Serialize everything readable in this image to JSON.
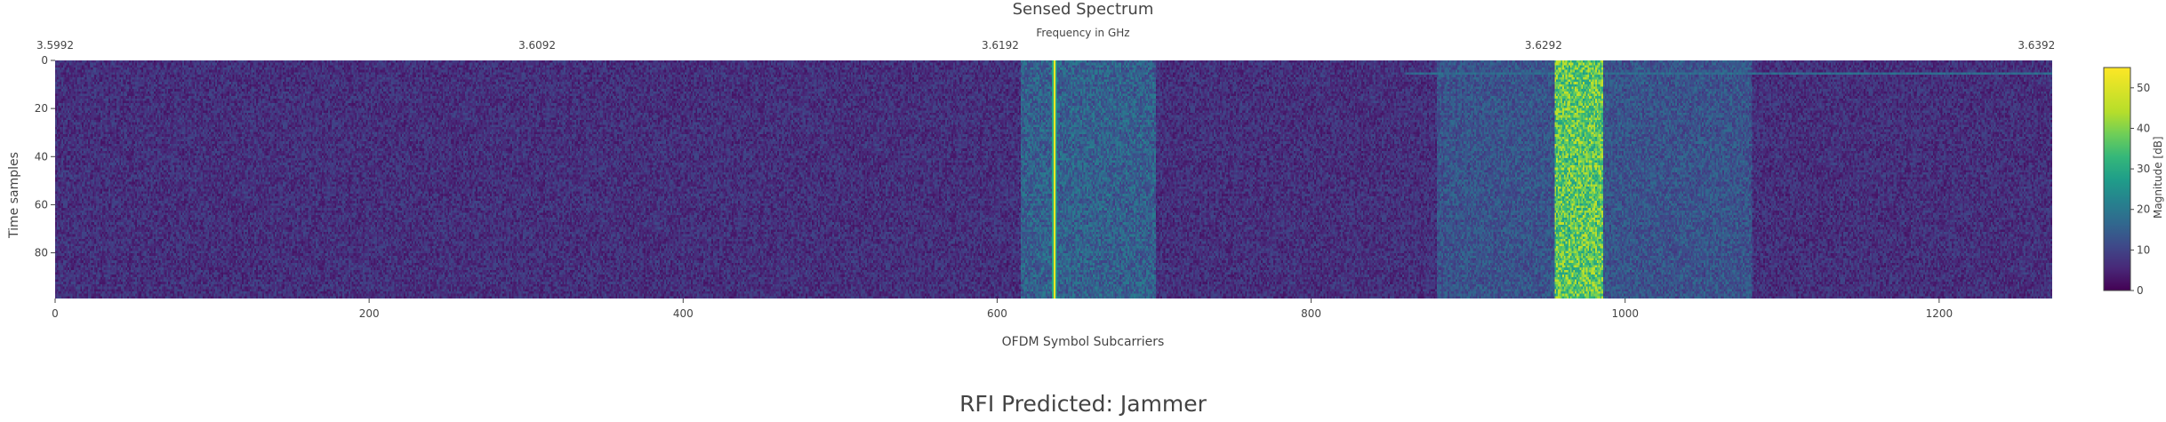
{
  "chart_data": {
    "type": "heatmap",
    "title": "Sensed Spectrum",
    "xlabel": "OFDM Symbol Subcarriers",
    "ylabel": "Time samples",
    "x2label": "Frequency in GHz",
    "colorbar_label": "Magnitude [dB]",
    "colorscale": "viridis",
    "xlim": [
      0,
      1272
    ],
    "ylim": [
      0,
      99
    ],
    "y_reversed": true,
    "zlim": [
      0,
      55
    ],
    "x_ticks": [
      0,
      200,
      400,
      600,
      800,
      1000,
      1200
    ],
    "y_ticks": [
      0,
      20,
      40,
      60,
      80
    ],
    "colorbar_ticks": [
      0,
      10,
      20,
      30,
      40,
      50
    ],
    "x2_ticks": [
      "3.5992",
      "3.6092",
      "3.6192",
      "3.6292",
      "3.6392"
    ],
    "x2_tick_positions": [
      0,
      307,
      602,
      948,
      1262
    ],
    "n_subcarriers": 1272,
    "n_time_samples": 100,
    "noise_floor_db": 8,
    "features": [
      {
        "kind": "narrowband_tone",
        "x": 636,
        "level_db": 55
      },
      {
        "kind": "band",
        "x_start": 615,
        "x_end": 700,
        "level_db": 18
      },
      {
        "kind": "wideband_jammer",
        "x_start": 955,
        "x_end": 985,
        "level_db": 45
      },
      {
        "kind": "band",
        "x_start": 880,
        "x_end": 1080,
        "level_db": 15
      },
      {
        "kind": "faint_line",
        "y": 5,
        "x_start": 860,
        "x_end": 1272,
        "level_db": 20
      }
    ]
  },
  "result": {
    "prefix": "RFI Predicted: ",
    "label": "Jammer"
  }
}
